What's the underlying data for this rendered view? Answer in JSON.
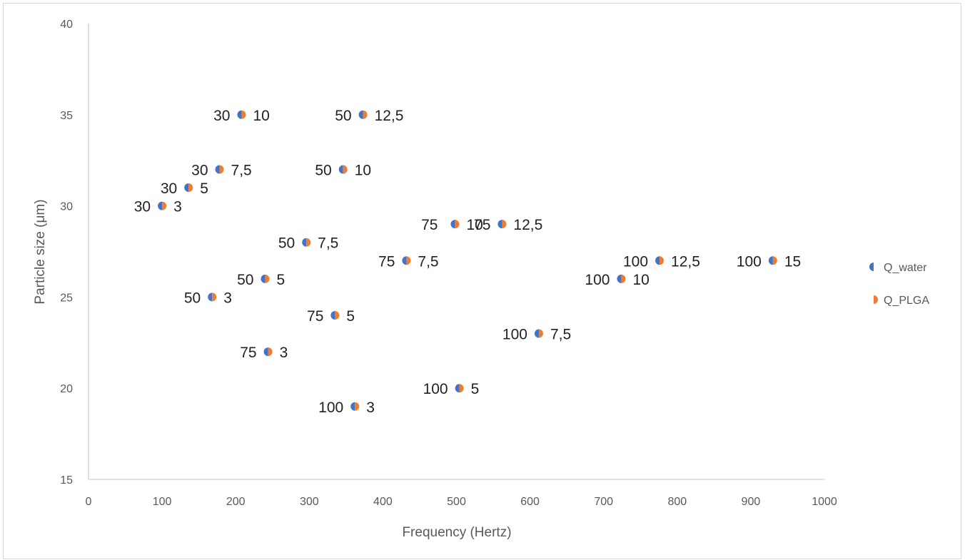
{
  "colors": {
    "q_water": "#4472C4",
    "q_plga": "#ED7D31",
    "axis": "#bfbfbf",
    "tick_text": "#595959",
    "label_text": "#222222"
  },
  "chart_data": {
    "type": "scatter",
    "title": "",
    "xlabel": "Frequency (Hertz)",
    "ylabel": "Particle size (μm)",
    "xlim": [
      0,
      1000
    ],
    "ylim": [
      15,
      40
    ],
    "xticks": [
      "0",
      "100",
      "200",
      "300",
      "400",
      "500",
      "600",
      "700",
      "800",
      "900",
      "1000"
    ],
    "yticks": [
      "15",
      "20",
      "25",
      "30",
      "35",
      "40"
    ],
    "grid": false,
    "legend_position": "right",
    "legend": [
      "Q_water",
      "Q_PLGA"
    ],
    "points": [
      {
        "x": 100,
        "y": 30,
        "q_water": "30",
        "q_plga": "3"
      },
      {
        "x": 136,
        "y": 31,
        "q_water": "30",
        "q_plga": "5"
      },
      {
        "x": 178,
        "y": 32,
        "q_water": "30",
        "q_plga": "7,5"
      },
      {
        "x": 208,
        "y": 35,
        "q_water": "30",
        "q_plga": "10"
      },
      {
        "x": 168,
        "y": 25,
        "q_water": "50",
        "q_plga": "3"
      },
      {
        "x": 240,
        "y": 26,
        "q_water": "50",
        "q_plga": "5"
      },
      {
        "x": 296,
        "y": 28,
        "q_water": "50",
        "q_plga": "7,5"
      },
      {
        "x": 346,
        "y": 32,
        "q_water": "50",
        "q_plga": "10"
      },
      {
        "x": 373,
        "y": 35,
        "q_water": "50",
        "q_plga": "12,5"
      },
      {
        "x": 244,
        "y": 22,
        "q_water": "75",
        "q_plga": "3"
      },
      {
        "x": 335,
        "y": 24,
        "q_water": "75",
        "q_plga": "5"
      },
      {
        "x": 432,
        "y": 27,
        "q_water": "75",
        "q_plga": "7,5"
      },
      {
        "x": 498,
        "y": 29,
        "q_water": "75",
        "q_plga": "10"
      },
      {
        "x": 562,
        "y": 29,
        "q_water": "75",
        "q_plga": "12,5"
      },
      {
        "x": 362,
        "y": 19,
        "q_water": "100",
        "q_plga": "3"
      },
      {
        "x": 504,
        "y": 20,
        "q_water": "100",
        "q_plga": "5"
      },
      {
        "x": 612,
        "y": 23,
        "q_water": "100",
        "q_plga": "7,5"
      },
      {
        "x": 724,
        "y": 26,
        "q_water": "100",
        "q_plga": "10"
      },
      {
        "x": 776,
        "y": 27,
        "q_water": "100",
        "q_plga": "12,5"
      },
      {
        "x": 930,
        "y": 27,
        "q_water": "100",
        "q_plga": "15"
      }
    ]
  }
}
